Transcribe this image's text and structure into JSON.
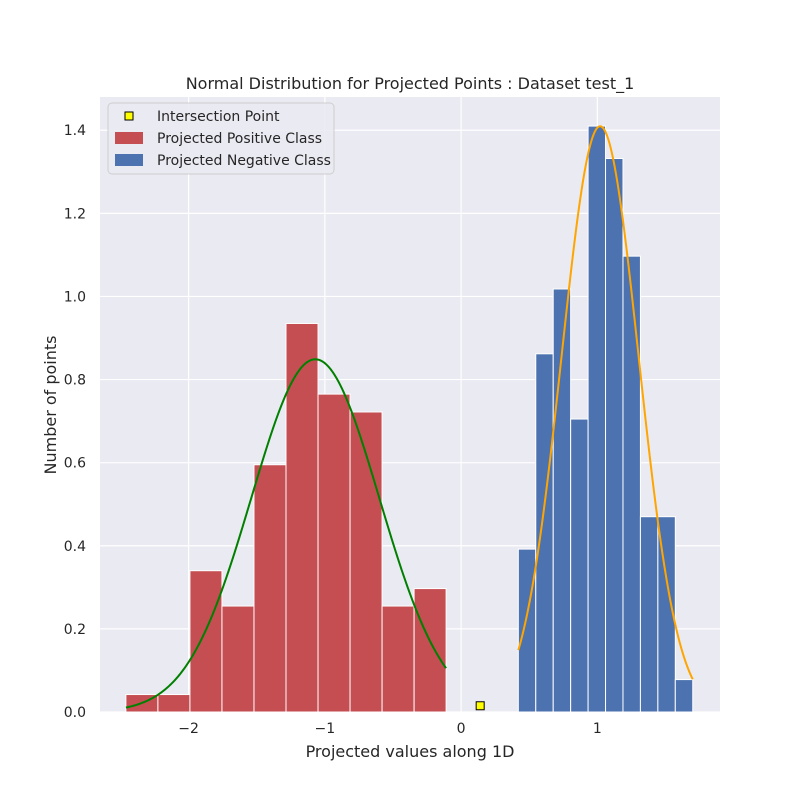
{
  "chart_data": {
    "type": "bar",
    "title": "Normal Distribution for Projected Points : Dataset test_1",
    "xlabel": "Projected values along 1D",
    "ylabel": "Number of points",
    "xlim": [
      -2.65,
      1.9
    ],
    "ylim": [
      0,
      1.48
    ],
    "xticks": [
      -2,
      -1,
      0,
      1
    ],
    "xtick_labels": [
      "−2",
      "−1",
      "0",
      "1"
    ],
    "yticks": [
      0.0,
      0.2,
      0.4,
      0.6,
      0.8,
      1.0,
      1.2,
      1.4
    ],
    "ytick_labels": [
      "0.0",
      "0.2",
      "0.4",
      "0.6",
      "0.8",
      "1.0",
      "1.2",
      "1.4"
    ],
    "grid": true,
    "legend_position": "top-left",
    "legend": [
      {
        "label": "Intersection Point",
        "kind": "marker"
      },
      {
        "label": "Projected Positive Class",
        "kind": "patch",
        "color": "#c44e52"
      },
      {
        "label": "Projected Negative Class",
        "kind": "patch",
        "color": "#4c72b0"
      }
    ],
    "histograms": [
      {
        "name": "Projected Positive Class",
        "color": "#c44e52",
        "bin_edges": [
          -2.46,
          -2.225,
          -1.99,
          -1.755,
          -1.52,
          -1.285,
          -1.05,
          -0.815,
          -0.58,
          -0.345,
          -0.11
        ],
        "values": [
          0.042,
          0.042,
          0.34,
          0.255,
          0.595,
          0.935,
          0.765,
          0.722,
          0.255,
          0.297
        ]
      },
      {
        "name": "Projected Negative Class",
        "color": "#4c72b0",
        "bin_edges": [
          0.42,
          0.548,
          0.676,
          0.804,
          0.932,
          1.06,
          1.188,
          1.316,
          1.444,
          1.572,
          1.7
        ],
        "values": [
          0.392,
          0.862,
          1.018,
          0.705,
          1.41,
          1.332,
          1.097,
          0.47,
          0.47,
          0.078
        ]
      }
    ],
    "curves": [
      {
        "name": "positive-fit",
        "color": "#008000",
        "mean": -1.07,
        "std": 0.47,
        "x_range": [
          -2.46,
          -0.11
        ]
      },
      {
        "name": "negative-fit",
        "color": "#ffa500",
        "mean": 1.02,
        "std": 0.283,
        "x_range": [
          0.42,
          1.7
        ]
      }
    ],
    "intersection_point": {
      "x": 0.14,
      "y": 0.015
    }
  }
}
